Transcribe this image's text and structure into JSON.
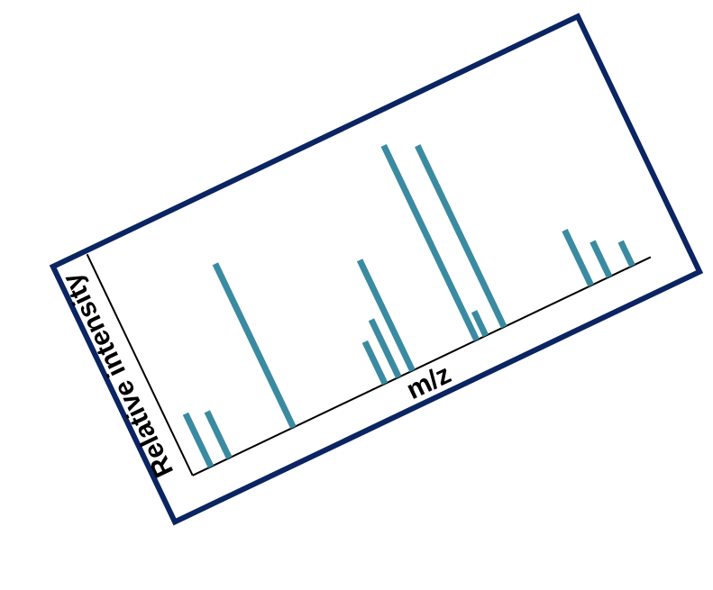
{
  "chart_data": {
    "type": "bar",
    "title": "",
    "xlabel": "m/z",
    "ylabel": "Relative intensity",
    "xlim": [
      0,
      100
    ],
    "ylim": [
      0,
      100
    ],
    "grid": false,
    "legend": "none",
    "series": [
      {
        "x": [
          4,
          8,
          22,
          42,
          45,
          48,
          62,
          64,
          68,
          87,
          91,
          96
        ],
        "values": [
          24,
          21,
          74,
          19,
          26,
          50,
          88,
          11,
          82,
          25,
          16,
          11
        ]
      }
    ]
  },
  "colors": {
    "frame": "#0b2462",
    "bars": "#3a8ba1",
    "axes": "#000000",
    "background": "#ffffff"
  }
}
